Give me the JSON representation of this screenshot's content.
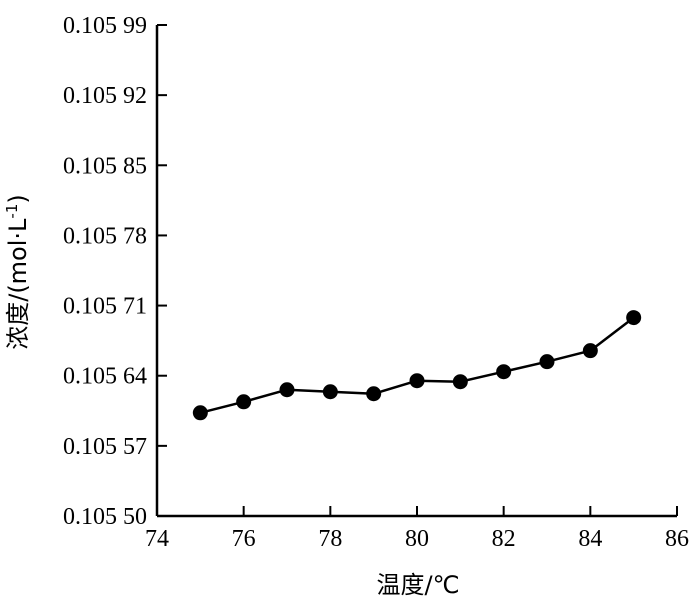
{
  "chart_data": {
    "type": "line",
    "title": "",
    "xlabel": "温度/℃",
    "ylabel": "浓度/(mol·L",
    "ylabel_sup": "-1",
    "ylabel_close": ")",
    "xlim": [
      74,
      86
    ],
    "ylim": [
      0.1055,
      0.10599
    ],
    "grid": false,
    "x_ticks": [
      74,
      76,
      78,
      80,
      82,
      84,
      86
    ],
    "x_tick_labels": [
      "74",
      "76",
      "78",
      "80",
      "82",
      "84",
      "86"
    ],
    "y_ticks": [
      0.1055,
      0.10557,
      0.10564,
      0.10571,
      0.10578,
      0.10585,
      0.10592,
      0.10599
    ],
    "y_tick_labels": [
      "0.105 50",
      "0.105 57",
      "0.105 64",
      "0.105 71",
      "0.105 78",
      "0.105 85",
      "0.105 92",
      "0.105 99"
    ],
    "series": [
      {
        "color": "#000000",
        "marker": "circle",
        "x": [
          75,
          76,
          77,
          78,
          79,
          80,
          81,
          82,
          83,
          84,
          85
        ],
        "y": [
          0.105603,
          0.105614,
          0.105626,
          0.105624,
          0.105622,
          0.105635,
          0.105634,
          0.105644,
          0.105654,
          0.105665,
          0.105698
        ]
      }
    ]
  }
}
